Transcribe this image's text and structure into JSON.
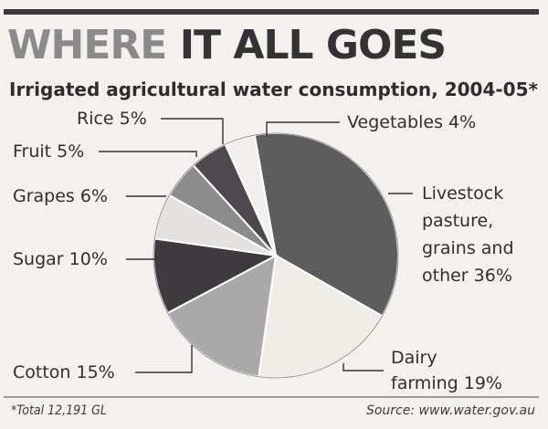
{
  "header": {
    "title_part1": "WHERE",
    "title_part2": "IT ALL GOES",
    "subtitle": "Irrigated agricultural water consumption, 2004-05*"
  },
  "footer": {
    "footnote": "*Total 12,191 GL",
    "source": "Source: www.water.gov.au"
  },
  "colors": {
    "Livestock": "#5d5d5d",
    "Dairy": "#eeece7",
    "Cotton": "#a9a9a9",
    "Sugar": "#3d3b3d",
    "Grapes": "#e3e2df",
    "Fruit": "#8c8c8c",
    "Rice": "#4c4a4c",
    "Vegetables": "#f2f0ec",
    "edge": "#ffffff",
    "leader": "#333333"
  },
  "chart_data": {
    "type": "pie",
    "title": "Irrigated agricultural water consumption, 2004-05*",
    "unit": "%",
    "total_note": "*Total 12,191 GL",
    "slices": [
      {
        "key": "Livestock",
        "value": 36,
        "label": [
          "Livestock",
          "pasture,",
          "grains and",
          "other 36%"
        ]
      },
      {
        "key": "Dairy",
        "value": 19,
        "label": [
          "Dairy",
          "farming 19%"
        ]
      },
      {
        "key": "Cotton",
        "value": 15,
        "label": [
          "Cotton 15%"
        ]
      },
      {
        "key": "Sugar",
        "value": 10,
        "label": [
          "Sugar 10%"
        ]
      },
      {
        "key": "Grapes",
        "value": 6,
        "label": [
          "Grapes 6%"
        ]
      },
      {
        "key": "Fruit",
        "value": 5,
        "label": [
          "Fruit 5%"
        ]
      },
      {
        "key": "Rice",
        "value": 5,
        "label": [
          "Rice 5%"
        ]
      },
      {
        "key": "Vegetables",
        "value": 4,
        "label": [
          "Vegetables 4%"
        ]
      }
    ]
  }
}
